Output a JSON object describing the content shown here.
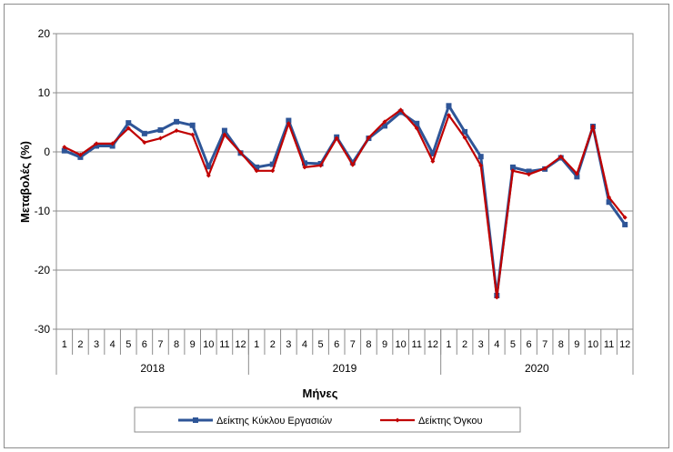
{
  "chart_data": {
    "type": "line",
    "xlabel": "Μήνες",
    "ylabel": "Μεταβολές (%)",
    "ylim": [
      -30,
      20
    ],
    "yticks": [
      20,
      10,
      0,
      -10,
      -20,
      -30
    ],
    "grid": "horizontal",
    "legend_position": "bottom",
    "months": [
      "1",
      "2",
      "3",
      "4",
      "5",
      "6",
      "7",
      "8",
      "9",
      "10",
      "11",
      "12",
      "1",
      "2",
      "3",
      "4",
      "5",
      "6",
      "7",
      "8",
      "9",
      "10",
      "11",
      "12",
      "1",
      "2",
      "3",
      "4",
      "5",
      "6",
      "7",
      "8",
      "9",
      "10",
      "11",
      "12"
    ],
    "years": [
      {
        "label": "2018",
        "count": 12
      },
      {
        "label": "2019",
        "count": 12
      },
      {
        "label": "2020",
        "count": 12
      }
    ],
    "series": [
      {
        "name": "Δείκτης Κύκλου Εργασιών",
        "color": "#2e5597",
        "marker": "square",
        "values": [
          0.2,
          -0.9,
          1.0,
          1.0,
          4.9,
          3.1,
          3.7,
          5.1,
          4.5,
          -2.5,
          3.6,
          -0.2,
          -2.6,
          -2.1,
          5.3,
          -1.9,
          -2.0,
          2.5,
          -1.8,
          2.3,
          4.4,
          6.7,
          4.8,
          -0.3,
          7.8,
          3.4,
          -0.8,
          -24.3,
          -2.6,
          -3.3,
          -2.9,
          -1.0,
          -4.2,
          4.3,
          -8.5,
          -12.3
        ]
      },
      {
        "name": "Δείκτης Όγκου",
        "color": "#c00000",
        "marker": "diamond",
        "values": [
          0.8,
          -0.5,
          1.4,
          1.4,
          4.0,
          1.6,
          2.3,
          3.6,
          2.9,
          -4.0,
          2.9,
          -0.1,
          -3.2,
          -3.2,
          4.8,
          -2.6,
          -2.3,
          2.3,
          -2.2,
          2.4,
          5.1,
          7.1,
          4.0,
          -1.6,
          6.2,
          2.4,
          -2.3,
          -24.6,
          -3.2,
          -3.8,
          -2.8,
          -0.8,
          -3.7,
          4.3,
          -7.7,
          -11.1
        ]
      }
    ]
  }
}
